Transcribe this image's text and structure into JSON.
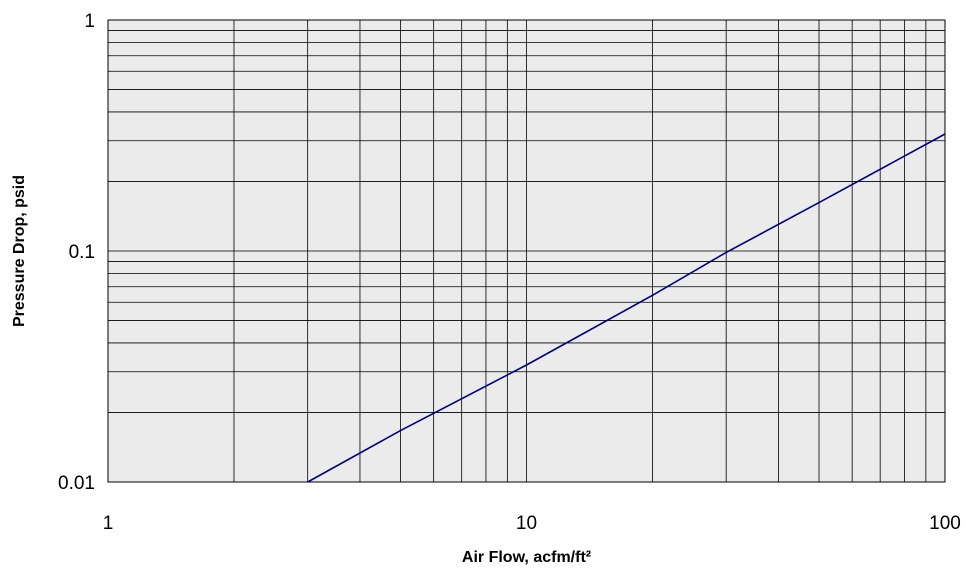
{
  "chart_data": {
    "type": "line",
    "xlabel": "Air Flow, acfm/ft²",
    "ylabel": "Pressure Drop, psid",
    "x_scale": "log",
    "y_scale": "log",
    "xlim": [
      1,
      100
    ],
    "ylim": [
      0.01,
      1
    ],
    "x_ticks": [
      "1",
      "10",
      "100"
    ],
    "y_ticks": [
      "0.01",
      "0.1",
      "1"
    ],
    "grid": true,
    "legend": "none",
    "series": [
      {
        "x": [
          3,
          5,
          10,
          20,
          30,
          50,
          100
        ],
        "y": [
          0.01,
          0.0167,
          0.0321,
          0.0643,
          0.0986,
          0.162,
          0.321
        ]
      }
    ],
    "colors": {
      "plot_background": "#ebebeb",
      "gridline": "#000000",
      "series_line": "#000080"
    }
  }
}
